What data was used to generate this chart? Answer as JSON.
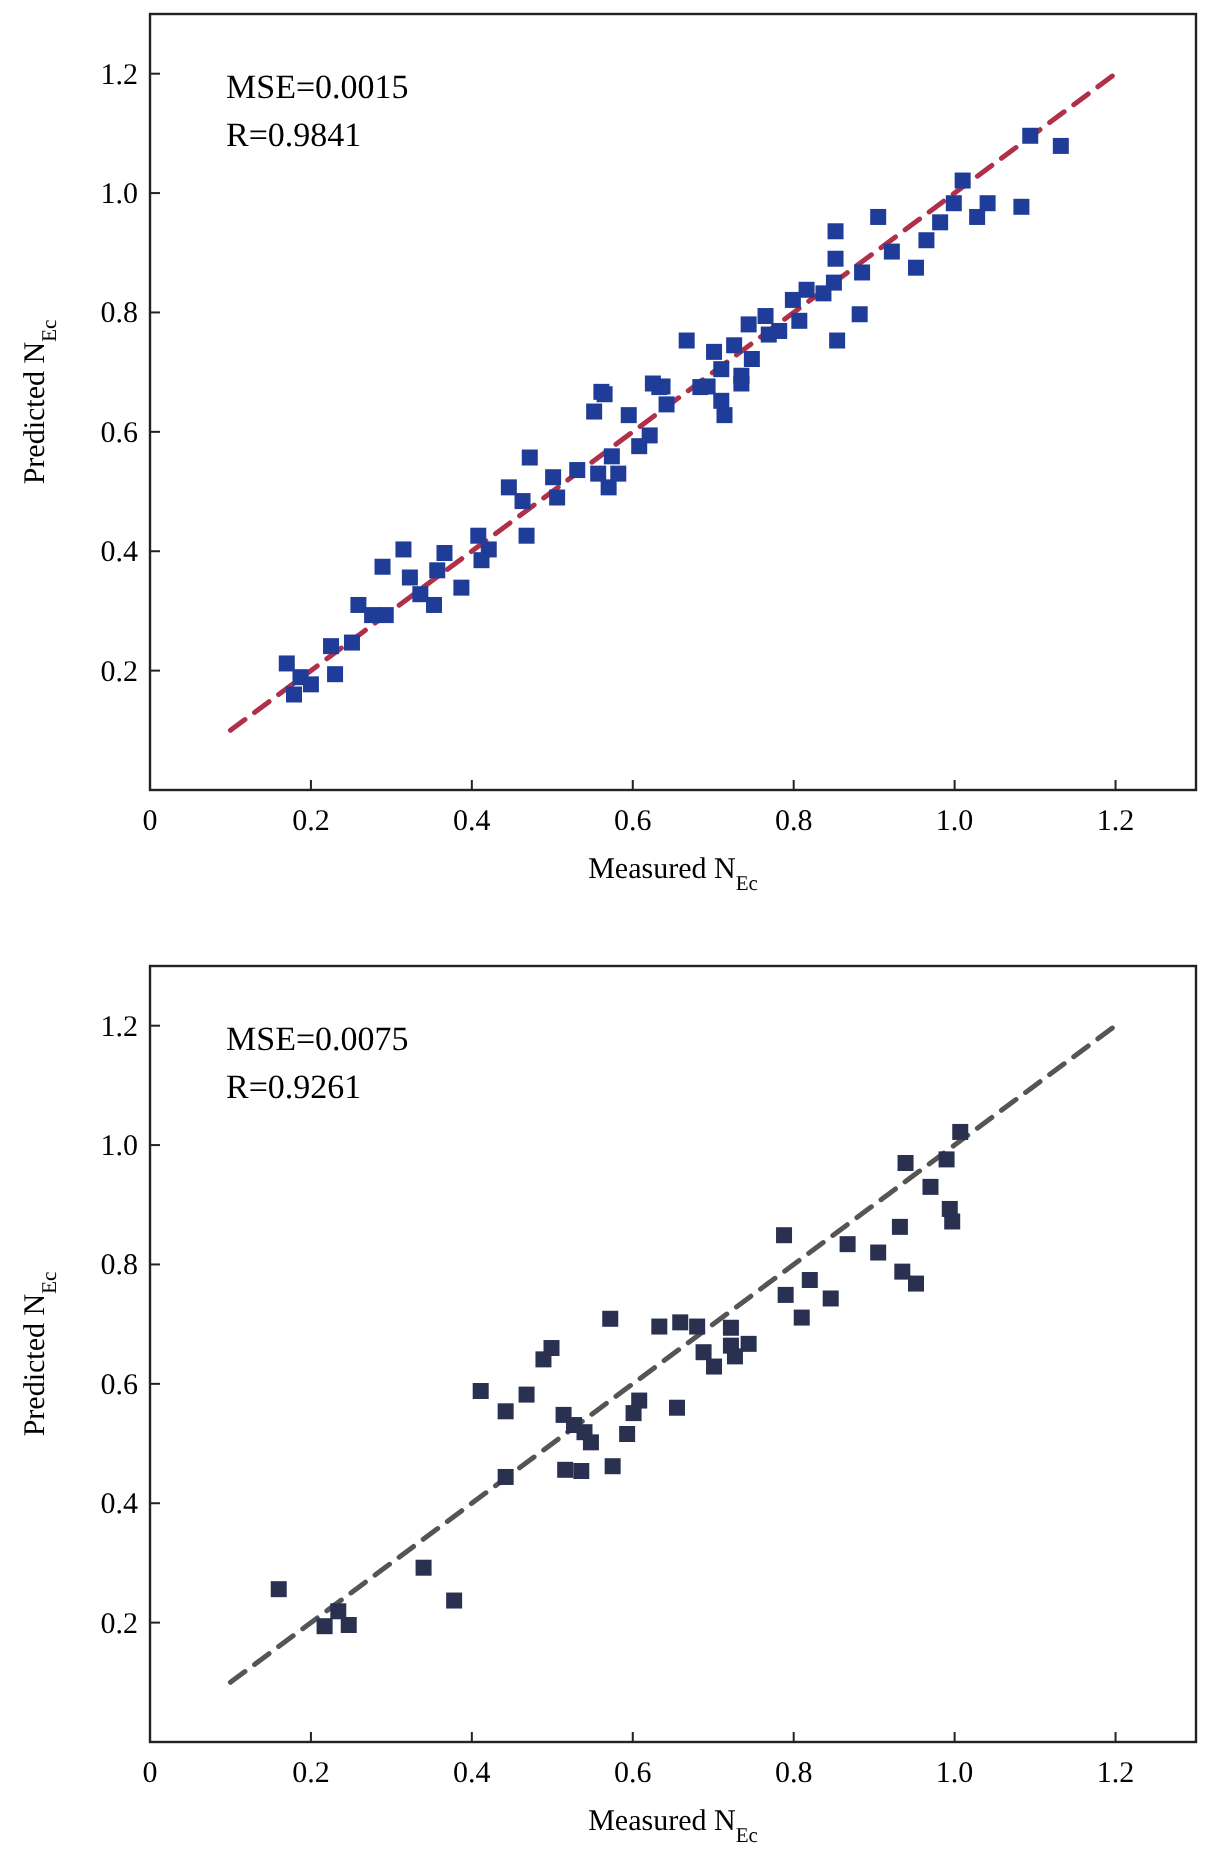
{
  "chart_data": [
    {
      "type": "scatter",
      "xlabel": "Measured N$_{Ec}$",
      "ylabel": "Predicted N$_{Ec}$",
      "xlim": [
        0,
        1.3
      ],
      "ylim": [
        0,
        1.3
      ],
      "xticks": [
        0,
        0.2,
        0.4,
        0.6,
        0.8,
        {
          "value": 1,
          "label": "1.0"
        },
        1.2
      ],
      "yticks": [
        0.2,
        0.4,
        0.6,
        0.8,
        {
          "value": 1,
          "label": "1.0"
        },
        1.2
      ],
      "grid": false,
      "marker": "square",
      "annotations": [
        "MSE=0.0015",
        "R=0.9841"
      ],
      "series": [
        {
          "type": "line",
          "color": "#b0304a",
          "line_style": "dashed",
          "marker": "none",
          "x": [
            0.1,
            1.2
          ],
          "values": [
            0.1,
            1.2
          ]
        },
        {
          "color": "#1f3c99",
          "x": [
            1.094,
            1.132,
            1.01,
            0.999,
            1.041,
            1.083,
            1.028,
            0.982,
            0.965,
            0.905,
            0.852,
            0.852,
            0.922,
            0.885,
            0.952,
            0.85,
            0.816,
            0.837,
            0.799,
            0.882,
            0.854,
            0.765,
            0.744,
            0.769,
            0.782,
            0.807,
            0.667,
            0.701,
            0.726,
            0.748,
            0.71,
            0.735,
            0.693,
            0.561,
            0.625,
            0.637,
            0.565,
            0.552,
            0.595,
            0.633,
            0.642,
            0.621,
            0.608,
            0.684,
            0.71,
            0.714,
            0.735,
            0.472,
            0.446,
            0.463,
            0.468,
            0.501,
            0.506,
            0.531,
            0.557,
            0.574,
            0.57,
            0.582,
            0.408,
            0.421,
            0.412,
            0.315,
            0.289,
            0.323,
            0.336,
            0.353,
            0.366,
            0.357,
            0.387,
            0.259,
            0.276,
            0.293,
            0.225,
            0.251,
            0.23,
            0.17,
            0.187,
            0.179,
            0.2
          ],
          "values": [
            1.096,
            1.079,
            1.021,
            0.983,
            0.983,
            0.977,
            0.96,
            0.951,
            0.921,
            0.96,
            0.936,
            0.89,
            0.902,
            0.867,
            0.875,
            0.85,
            0.838,
            0.832,
            0.821,
            0.797,
            0.753,
            0.794,
            0.78,
            0.763,
            0.769,
            0.786,
            0.753,
            0.734,
            0.745,
            0.722,
            0.705,
            0.694,
            0.676,
            0.667,
            0.681,
            0.676,
            0.663,
            0.634,
            0.628,
            0.675,
            0.646,
            0.594,
            0.576,
            0.675,
            0.652,
            0.628,
            0.681,
            0.557,
            0.507,
            0.484,
            0.426,
            0.524,
            0.49,
            0.536,
            0.53,
            0.559,
            0.507,
            0.53,
            0.426,
            0.403,
            0.385,
            0.403,
            0.374,
            0.356,
            0.328,
            0.31,
            0.397,
            0.368,
            0.339,
            0.31,
            0.293,
            0.293,
            0.241,
            0.247,
            0.194,
            0.212,
            0.189,
            0.16,
            0.177
          ]
        }
      ]
    },
    {
      "type": "scatter",
      "xlabel": "Measured N$_{Ec}$",
      "ylabel": "Predicted N$_{Ec}$",
      "xlim": [
        0,
        1.3
      ],
      "ylim": [
        0,
        1.3
      ],
      "xticks": [
        0,
        0.2,
        0.4,
        0.6,
        0.8,
        {
          "value": 1,
          "label": "1.0"
        },
        1.2
      ],
      "yticks": [
        0.2,
        0.4,
        0.6,
        0.8,
        {
          "value": 1,
          "label": "1.0"
        },
        1.2
      ],
      "grid": false,
      "marker": "square",
      "annotations": [
        "MSE=0.0075",
        "R=0.9261"
      ],
      "series": [
        {
          "type": "line",
          "color": "#555555",
          "line_style": "dashed",
          "marker": "none",
          "x": [
            0.1,
            1.2
          ],
          "values": [
            0.1,
            1.2
          ]
        },
        {
          "color": "#2a3050",
          "x": [
            1.007,
            0.939,
            0.99,
            0.97,
            0.994,
            0.997,
            0.932,
            0.867,
            0.905,
            0.788,
            0.935,
            0.952,
            0.82,
            0.79,
            0.846,
            0.81,
            0.572,
            0.633,
            0.659,
            0.68,
            0.722,
            0.688,
            0.722,
            0.744,
            0.489,
            0.499,
            0.701,
            0.727,
            0.411,
            0.442,
            0.468,
            0.514,
            0.54,
            0.548,
            0.527,
            0.608,
            0.601,
            0.593,
            0.655,
            0.575,
            0.516,
            0.536,
            0.442,
            0.34,
            0.378,
            0.16,
            0.217,
            0.234,
            0.247
          ],
          "values": [
            1.022,
            0.97,
            0.976,
            0.93,
            0.893,
            0.872,
            0.863,
            0.834,
            0.82,
            0.849,
            0.788,
            0.768,
            0.774,
            0.749,
            0.743,
            0.711,
            0.709,
            0.696,
            0.703,
            0.696,
            0.694,
            0.653,
            0.664,
            0.667,
            0.641,
            0.66,
            0.629,
            0.646,
            0.588,
            0.554,
            0.582,
            0.548,
            0.519,
            0.502,
            0.531,
            0.572,
            0.551,
            0.516,
            0.56,
            0.462,
            0.456,
            0.454,
            0.444,
            0.292,
            0.237,
            0.256,
            0.194,
            0.219,
            0.196
          ]
        }
      ]
    }
  ]
}
